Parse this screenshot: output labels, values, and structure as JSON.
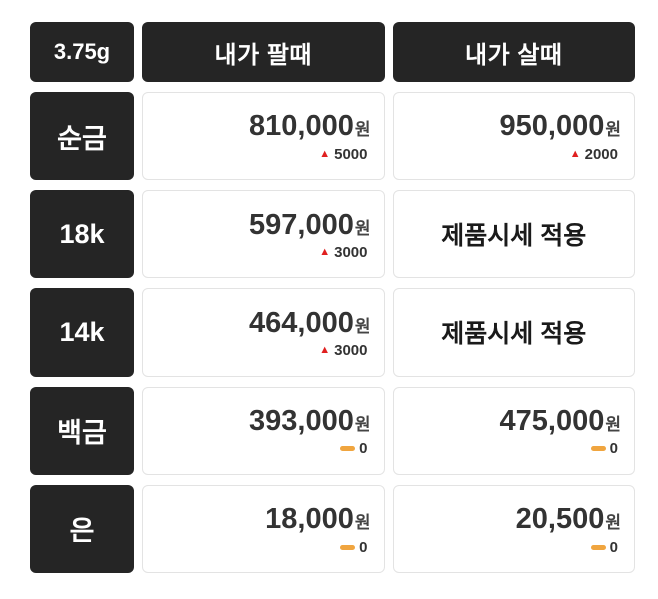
{
  "header": {
    "unit": "3.75g",
    "sell": "내가 팔때",
    "buy": "내가 살때"
  },
  "rows": [
    {
      "label": "순금",
      "sell": {
        "price": "810,000",
        "unit": "원",
        "change": "5000"
      },
      "buy": {
        "price": "950,000",
        "unit": "원",
        "change": "2000"
      }
    },
    {
      "label": "18k",
      "sell": {
        "price": "597,000",
        "unit": "원",
        "change": "3000"
      },
      "buy": {
        "text": "제품시세 적용"
      }
    },
    {
      "label": "14k",
      "sell": {
        "price": "464,000",
        "unit": "원",
        "change": "3000"
      },
      "buy": {
        "text": "제품시세 적용"
      }
    },
    {
      "label": "백금",
      "sell": {
        "price": "393,000",
        "unit": "원",
        "change": "0"
      },
      "buy": {
        "price": "475,000",
        "unit": "원",
        "change": "0"
      }
    },
    {
      "label": "은",
      "sell": {
        "price": "18,000",
        "unit": "원",
        "change": "0"
      },
      "buy": {
        "price": "20,500",
        "unit": "원",
        "change": "0"
      }
    }
  ],
  "icons": {
    "up": "▲",
    "flat": "flat-dash-bar"
  },
  "colors": {
    "dark": "#252525",
    "up": "#e02020",
    "flat": "#f0a53f",
    "border": "#e3e3e3"
  },
  "chart_data": {
    "type": "table",
    "columns": [
      "3.75g",
      "내가 팔때",
      "내가 살때"
    ],
    "rows": [
      {
        "item": "순금",
        "sell": 810000,
        "sell_change": 5000,
        "buy": 950000,
        "buy_change": 2000
      },
      {
        "item": "18k",
        "sell": 597000,
        "sell_change": 3000,
        "buy": "제품시세 적용"
      },
      {
        "item": "14k",
        "sell": 464000,
        "sell_change": 3000,
        "buy": "제품시세 적용"
      },
      {
        "item": "백금",
        "sell": 393000,
        "sell_change": 0,
        "buy": 475000,
        "buy_change": 0
      },
      {
        "item": "은",
        "sell": 18000,
        "sell_change": 0,
        "buy": 20500,
        "buy_change": 0
      }
    ]
  }
}
